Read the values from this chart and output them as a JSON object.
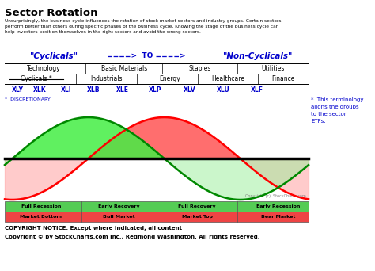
{
  "title": "Sector Rotation",
  "intro_text": "Unsurprisingly, the business cycle influences the rotation of stock market sectors and industry groups. Certain sectors\nperform better than others during specific phases of the business cycle. Knowing the stage of the business cycle can\nhelp investors position themselves in the right sectors and avoid the wrong sectors.",
  "cyclicals_label": "\"Cyclicals\"",
  "arrow_text": "====>  TO ====>",
  "non_cyclicals_label": "\"Non-Cyclicals\"",
  "row1": [
    "Technology",
    "Basic Materials",
    "Staples",
    "Utilities"
  ],
  "row2_first": "Cyclicals *",
  "row2_rest": [
    "Industrials",
    "Energy",
    "Healthcare",
    "Finance"
  ],
  "etfs": [
    "XLY",
    "XLK",
    "XLI",
    "XLB",
    "XLE",
    "XLP",
    "XLV",
    "XLU",
    "XLF"
  ],
  "etf_x": [
    22,
    50,
    84,
    118,
    155,
    196,
    240,
    282,
    325
  ],
  "discretionary_label": "*  DISCRETIONARY",
  "right_note": "*  This terminology\naligns the groups\nto the sector\nETFs.",
  "copyright_small": "Copyright (c). StockCharts.com",
  "green_row_labels": [
    "Full Recession",
    "Early Recovery",
    "Full Recovery",
    "Early Recession"
  ],
  "red_row_labels": [
    "Market Bottom",
    "Bull Market",
    "Market Top",
    "Bear Market"
  ],
  "copyright1": "COPYRIGHT NOTICE. Except where indicated, all content",
  "copyright2": "Copyright © by StockCharts.com Inc., Redmond Washington. All rights reserved.",
  "blue_color": "#0000CC",
  "table_dividers_row1": [
    108,
    205,
    300
  ],
  "table_dividers_row2": [
    96,
    173,
    250,
    326
  ],
  "green_bar_dividers": [
    103,
    198,
    300
  ],
  "green_centers": [
    52,
    150,
    249,
    352
  ],
  "fig_width": 4.74,
  "fig_height": 3.42,
  "dpi": 100
}
